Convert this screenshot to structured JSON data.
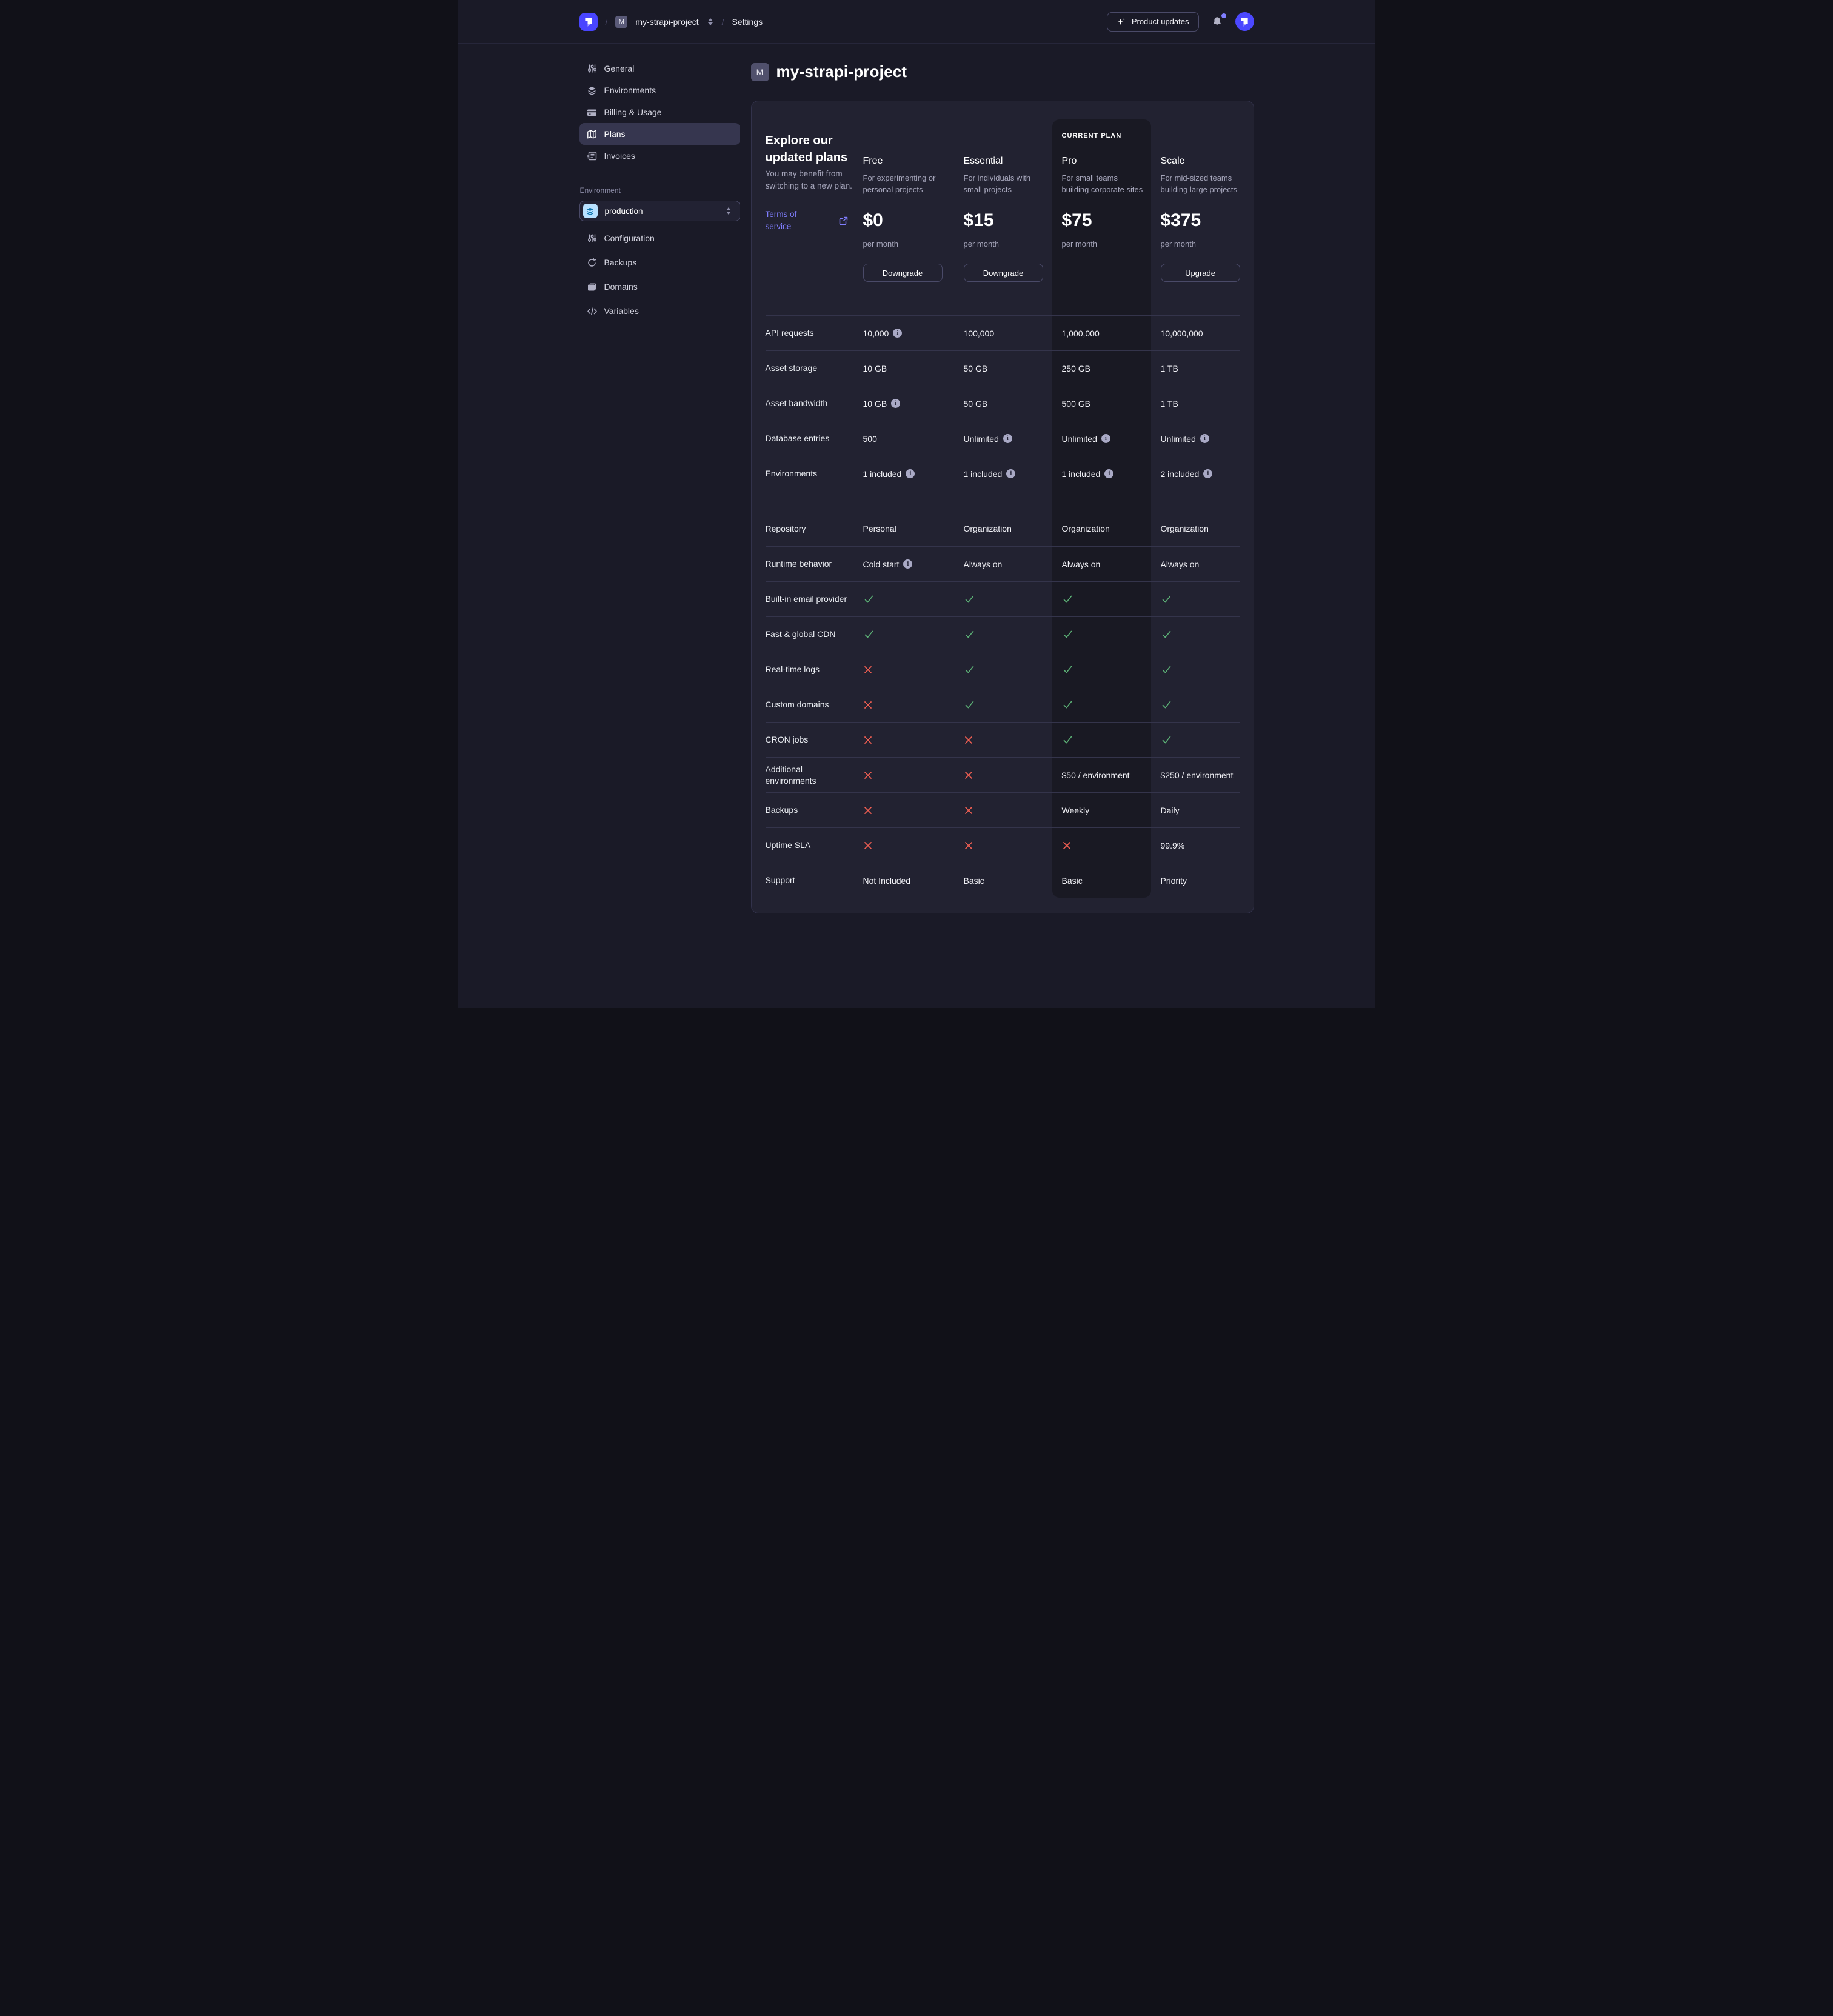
{
  "colors": {
    "bg": "#1a1a27",
    "card": "#222231",
    "line": "#34344b",
    "pro": "#191923",
    "accent": "#4945ff",
    "link": "#807eff",
    "green": "#5cb176",
    "red": "#ee5e52",
    "muted": "#a5a5ba",
    "ui-border": "#4a4a68",
    "active-item": "#36364f"
  },
  "header": {
    "separator": "/",
    "project_badge": "M",
    "project_name": "my-strapi-project",
    "settings_label": "Settings",
    "product_updates_label": "Product updates"
  },
  "sidebar": {
    "items": [
      {
        "label": "General",
        "icon": "sliders-icon",
        "active": false
      },
      {
        "label": "Environments",
        "icon": "layers-icon",
        "active": false
      },
      {
        "label": "Billing & Usage",
        "icon": "credit-card-icon",
        "active": false
      },
      {
        "label": "Plans",
        "icon": "map-icon",
        "active": true
      },
      {
        "label": "Invoices",
        "icon": "invoice-icon",
        "active": false
      }
    ],
    "environment_label": "Environment",
    "environment_value": "production",
    "env_items": [
      {
        "label": "Configuration",
        "icon": "sliders-icon"
      },
      {
        "label": "Backups",
        "icon": "refresh-icon"
      },
      {
        "label": "Domains",
        "icon": "folder-icon"
      },
      {
        "label": "Variables",
        "icon": "code-icon"
      }
    ]
  },
  "main": {
    "project_badge": "M",
    "title": "my-strapi-project",
    "intro": {
      "heading": "Explore our updated plans",
      "subtext": "You may benefit from switching to a new plan.",
      "terms_link": "Terms of service"
    },
    "current_plan_label": "CURRENT PLAN",
    "plans": [
      {
        "name": "Free",
        "description": "For experimenting or personal projects",
        "price": "$0",
        "period": "per month",
        "action": "Downgrade",
        "current": false
      },
      {
        "name": "Essential",
        "description": "For individuals with small projects",
        "price": "$15",
        "period": "per month",
        "action": "Downgrade",
        "current": false
      },
      {
        "name": "Pro",
        "description": "For small teams building corporate sites",
        "price": "$75",
        "period": "per month",
        "action": null,
        "current": true
      },
      {
        "name": "Scale",
        "description": "For mid-sized teams building large projects",
        "price": "$375",
        "period": "per month",
        "action": "Upgrade",
        "current": false
      }
    ],
    "features": [
      {
        "label": "API requests",
        "cells": [
          {
            "text": "10,000",
            "info": true
          },
          {
            "text": "100,000"
          },
          {
            "text": "1,000,000"
          },
          {
            "text": "10,000,000"
          }
        ]
      },
      {
        "label": "Asset storage",
        "cells": [
          {
            "text": "10 GB"
          },
          {
            "text": "50 GB"
          },
          {
            "text": "250 GB"
          },
          {
            "text": "1 TB"
          }
        ]
      },
      {
        "label": "Asset bandwidth",
        "cells": [
          {
            "text": "10 GB",
            "info": true
          },
          {
            "text": "50 GB"
          },
          {
            "text": "500 GB"
          },
          {
            "text": "1 TB"
          }
        ]
      },
      {
        "label": "Database entries",
        "cells": [
          {
            "text": "500"
          },
          {
            "text": "Unlimited",
            "info": true
          },
          {
            "text": "Unlimited",
            "info": true
          },
          {
            "text": "Unlimited",
            "info": true
          }
        ]
      },
      {
        "label": "Environments",
        "cells": [
          {
            "text": "1 included",
            "info": true
          },
          {
            "text": "1 included",
            "info": true
          },
          {
            "text": "1 included",
            "info": true
          },
          {
            "text": "2 included",
            "info": true
          }
        ],
        "spacer_after": true
      },
      {
        "label": "Repository",
        "cells": [
          {
            "text": "Personal"
          },
          {
            "text": "Organization"
          },
          {
            "text": "Organization"
          },
          {
            "text": "Organization"
          }
        ],
        "no_top_border": true
      },
      {
        "label": "Runtime behavior",
        "cells": [
          {
            "text": "Cold start",
            "info": true
          },
          {
            "text": "Always on"
          },
          {
            "text": "Always on"
          },
          {
            "text": "Always on"
          }
        ]
      },
      {
        "label": "Built-in email provider",
        "cells": [
          {
            "mark": "check"
          },
          {
            "mark": "check"
          },
          {
            "mark": "check"
          },
          {
            "mark": "check"
          }
        ]
      },
      {
        "label": "Fast & global CDN",
        "cells": [
          {
            "mark": "check"
          },
          {
            "mark": "check"
          },
          {
            "mark": "check"
          },
          {
            "mark": "check"
          }
        ]
      },
      {
        "label": "Real-time logs",
        "cells": [
          {
            "mark": "cross"
          },
          {
            "mark": "check"
          },
          {
            "mark": "check"
          },
          {
            "mark": "check"
          }
        ]
      },
      {
        "label": "Custom domains",
        "cells": [
          {
            "mark": "cross"
          },
          {
            "mark": "check"
          },
          {
            "mark": "check"
          },
          {
            "mark": "check"
          }
        ]
      },
      {
        "label": "CRON jobs",
        "cells": [
          {
            "mark": "cross"
          },
          {
            "mark": "cross"
          },
          {
            "mark": "check"
          },
          {
            "mark": "check"
          }
        ]
      },
      {
        "label": "Additional environments",
        "cells": [
          {
            "mark": "cross"
          },
          {
            "mark": "cross"
          },
          {
            "text": "$50 / environment"
          },
          {
            "text": "$250 / environment"
          }
        ]
      },
      {
        "label": "Backups",
        "cells": [
          {
            "mark": "cross"
          },
          {
            "mark": "cross"
          },
          {
            "text": "Weekly"
          },
          {
            "text": "Daily"
          }
        ]
      },
      {
        "label": "Uptime SLA",
        "cells": [
          {
            "mark": "cross"
          },
          {
            "mark": "cross"
          },
          {
            "mark": "cross"
          },
          {
            "text": "99.9%"
          }
        ]
      },
      {
        "label": "Support",
        "cells": [
          {
            "text": "Not Included"
          },
          {
            "text": "Basic"
          },
          {
            "text": "Basic"
          },
          {
            "text": "Priority"
          }
        ]
      }
    ]
  }
}
